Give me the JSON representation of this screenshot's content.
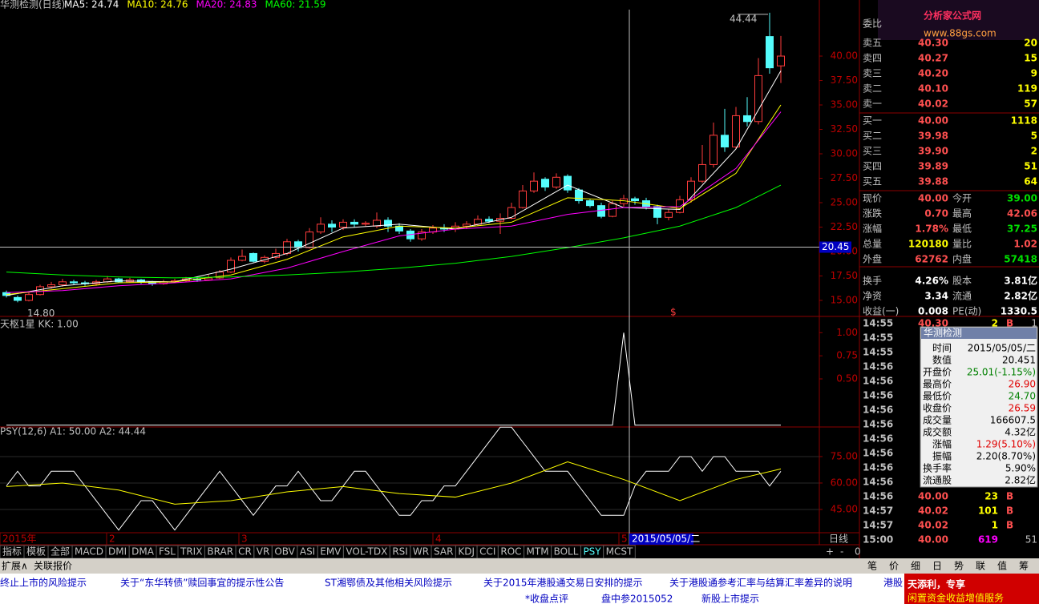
{
  "header": {
    "title": "华测检测(日线)",
    "ma_legend": [
      {
        "label": "MA5: 24.74",
        "color": "#ffffff"
      },
      {
        "label": "MA10: 24.76",
        "color": "#ffff00"
      },
      {
        "label": "MA20: 24.83",
        "color": "#ff00ff"
      },
      {
        "label": "MA60: 21.59",
        "color": "#00ff00"
      }
    ]
  },
  "price_chart": {
    "ylim": [
      13.36,
      45.74
    ],
    "yticks": [
      {
        "value": 15,
        "label": "15.00"
      },
      {
        "value": 17.5,
        "label": "17.50"
      },
      {
        "value": 20,
        "label": "20.00"
      },
      {
        "value": 22.5,
        "label": "22.50"
      },
      {
        "value": 25,
        "label": "25.00"
      },
      {
        "value": 27.5,
        "label": "27.50"
      },
      {
        "value": 30,
        "label": "30.00"
      },
      {
        "value": 32.5,
        "label": "32.50"
      },
      {
        "value": 35,
        "label": "35.00"
      },
      {
        "value": 37.5,
        "label": "37.50"
      },
      {
        "value": 40,
        "label": "40.00"
      }
    ],
    "candles": [
      [
        15.8,
        15.5,
        16.0,
        15.3
      ],
      [
        15.3,
        15.0,
        15.5,
        14.8
      ],
      [
        15.0,
        15.6,
        15.8,
        14.9
      ],
      [
        15.6,
        16.4,
        16.6,
        15.5
      ],
      [
        16.4,
        16.6,
        16.9,
        16.2
      ],
      [
        16.6,
        16.9,
        17.2,
        16.4
      ],
      [
        16.9,
        16.8,
        17.1,
        16.6
      ],
      [
        16.8,
        16.7,
        17.0,
        16.5
      ],
      [
        16.7,
        16.9,
        17.1,
        16.5
      ],
      [
        16.9,
        17.2,
        17.5,
        16.8
      ],
      [
        17.2,
        16.9,
        17.3,
        16.8
      ],
      [
        16.9,
        17.1,
        17.3,
        16.8
      ],
      [
        17.1,
        16.9,
        17.2,
        16.7
      ],
      [
        16.9,
        16.7,
        17.0,
        16.5
      ],
      [
        16.7,
        16.9,
        17.1,
        16.6
      ],
      [
        16.9,
        17.0,
        17.2,
        16.8
      ],
      [
        17.0,
        17.2,
        17.4,
        16.9
      ],
      [
        17.2,
        17.1,
        17.4,
        16.9
      ],
      [
        17.1,
        17.3,
        17.6,
        17.0
      ],
      [
        17.3,
        17.9,
        18.1,
        17.2
      ],
      [
        17.9,
        19.1,
        19.4,
        17.8
      ],
      [
        19.1,
        19.5,
        20.2,
        19.0
      ],
      [
        19.8,
        19.0,
        19.9,
        18.9
      ],
      [
        19.0,
        19.4,
        19.6,
        18.8
      ],
      [
        19.4,
        19.8,
        20.3,
        19.2
      ],
      [
        19.8,
        21.0,
        21.3,
        19.6
      ],
      [
        21.0,
        20.4,
        21.2,
        20.0
      ],
      [
        20.4,
        22.0,
        22.4,
        20.3
      ],
      [
        22.0,
        22.8,
        23.5,
        21.8
      ],
      [
        22.8,
        22.5,
        23.2,
        22.0
      ],
      [
        22.5,
        23.0,
        23.3,
        22.2
      ],
      [
        23.0,
        22.8,
        23.3,
        22.5
      ],
      [
        22.8,
        22.9,
        23.1,
        22.6
      ],
      [
        22.6,
        23.2,
        24.0,
        22.4
      ],
      [
        23.2,
        22.6,
        23.5,
        22.0
      ],
      [
        22.6,
        22.1,
        22.9,
        21.8
      ],
      [
        22.1,
        21.3,
        22.3,
        21.0
      ],
      [
        21.3,
        22.0,
        22.3,
        21.1
      ],
      [
        22.0,
        22.4,
        22.7,
        21.8
      ],
      [
        22.4,
        22.3,
        22.8,
        22.0
      ],
      [
        22.3,
        22.6,
        23.0,
        22.0
      ],
      [
        22.6,
        22.8,
        23.1,
        22.3
      ],
      [
        22.8,
        23.3,
        23.7,
        22.6
      ],
      [
        23.3,
        23.1,
        23.6,
        22.9
      ],
      [
        23.1,
        23.4,
        23.9,
        21.8
      ],
      [
        23.4,
        24.5,
        25.0,
        23.3
      ],
      [
        24.5,
        26.2,
        26.8,
        24.4
      ],
      [
        26.2,
        27.2,
        28.1,
        26.0
      ],
      [
        27.4,
        26.6,
        27.6,
        26.2
      ],
      [
        26.6,
        27.6,
        28.0,
        26.4
      ],
      [
        27.7,
        26.3,
        27.9,
        26.0
      ],
      [
        26.3,
        25.2,
        26.5,
        24.9
      ],
      [
        25.2,
        24.7,
        25.4,
        24.5
      ],
      [
        24.7,
        23.6,
        25.0,
        23.4
      ],
      [
        23.6,
        24.9,
        25.2,
        23.5
      ],
      [
        24.9,
        25.4,
        25.8,
        24.6
      ],
      [
        25.4,
        25.2,
        25.6,
        24.8
      ],
      [
        25.2,
        24.6,
        25.5,
        24.3
      ],
      [
        24.6,
        23.5,
        24.8,
        22.8
      ],
      [
        23.5,
        24.0,
        24.3,
        23.2
      ],
      [
        24.0,
        25.3,
        25.7,
        23.9
      ],
      [
        25.3,
        27.2,
        27.6,
        25.0
      ],
      [
        27.2,
        28.9,
        30.9,
        27.0
      ],
      [
        28.9,
        31.9,
        33.2,
        28.6
      ],
      [
        31.9,
        30.7,
        34.6,
        30.2
      ],
      [
        30.7,
        33.9,
        34.8,
        30.5
      ],
      [
        33.9,
        33.3,
        35.8,
        32.8
      ],
      [
        33.3,
        38.0,
        39.8,
        33.0
      ],
      [
        42.0,
        38.8,
        44.44,
        38.2
      ],
      [
        39.0,
        40.0,
        42.06,
        37.25
      ]
    ],
    "ma_x": [
      0,
      5,
      10,
      15,
      20,
      25,
      30,
      35,
      40,
      45,
      50,
      55,
      60,
      65,
      69
    ],
    "ma": [
      {
        "name": "MA5",
        "color": "#ffffff",
        "values": [
          15.5,
          16.5,
          17.0,
          16.9,
          18.2,
          19.8,
          22.4,
          22.8,
          22.3,
          23.5,
          26.8,
          24.5,
          24.3,
          30.5,
          38.5
        ]
      },
      {
        "name": "MA10",
        "color": "#ffff00",
        "values": [
          15.6,
          16.2,
          16.8,
          16.9,
          17.6,
          19.2,
          21.5,
          22.6,
          22.4,
          23.0,
          25.5,
          25.2,
          24.4,
          28.0,
          35.0
        ]
      },
      {
        "name": "MA20",
        "color": "#ff00ff",
        "values": [
          15.8,
          16.0,
          16.5,
          16.8,
          17.2,
          18.3,
          20.0,
          21.6,
          22.3,
          22.6,
          23.8,
          24.5,
          24.6,
          28.5,
          34.3
        ]
      },
      {
        "name": "MA60",
        "color": "#00ff00",
        "values": [
          17.9,
          17.6,
          17.4,
          17.3,
          17.4,
          17.6,
          17.9,
          18.3,
          18.8,
          19.5,
          20.4,
          21.4,
          22.6,
          24.5,
          26.8
        ]
      }
    ],
    "high_label": "44.44",
    "low_label": "14.80",
    "signal_label": "$",
    "crosshair_value": 20.45,
    "crosshair_label": "20.45"
  },
  "kk_chart": {
    "title": "天枢1星 KK: 1.00",
    "ylim": [
      -0.02,
      1.15
    ],
    "yticks": [
      {
        "value": 0.5,
        "label": "0.50"
      },
      {
        "value": 0.75,
        "label": "0.75"
      },
      {
        "value": 1,
        "label": "1.00"
      }
    ],
    "values": [
      0,
      0,
      0,
      0,
      0,
      0,
      0,
      0,
      0,
      0,
      0,
      0,
      0,
      0,
      0,
      0,
      0,
      0,
      0,
      0,
      0,
      0,
      0,
      0,
      0,
      0,
      0,
      0,
      0,
      0,
      0,
      0,
      0,
      0,
      0,
      0,
      0,
      0,
      0,
      0,
      0,
      0,
      0,
      0,
      0,
      0,
      0,
      0,
      0,
      0,
      0,
      0,
      0,
      0,
      0,
      1,
      0,
      0,
      0,
      0,
      0,
      0,
      0,
      0,
      0,
      0,
      0,
      0,
      0,
      0
    ]
  },
  "psy_chart": {
    "title": "PSY(12,6)  A1: 50.00  A2: 44.44",
    "ylim": [
      31.8,
      91.8
    ],
    "yticks": [
      {
        "value": 45,
        "label": "45.00"
      },
      {
        "value": 60,
        "label": "60.00"
      },
      {
        "value": 75,
        "label": "75.00"
      }
    ],
    "psy": [
      58.33,
      66.67,
      58.33,
      58.33,
      66.67,
      66.67,
      66.67,
      58.33,
      50,
      41.67,
      33.33,
      41.67,
      50,
      50,
      41.67,
      33.33,
      41.67,
      50,
      58.33,
      66.67,
      58.33,
      50,
      41.67,
      50,
      58.33,
      58.33,
      66.67,
      58.33,
      50,
      50,
      58.33,
      66.67,
      66.67,
      58.33,
      50,
      41.67,
      41.67,
      50,
      50,
      58.33,
      58.33,
      66.67,
      75,
      83.33,
      91.67,
      91.67,
      83.33,
      75,
      66.67,
      66.67,
      66.67,
      58.33,
      50,
      41.67,
      41.67,
      41.67,
      58.33,
      66.67,
      66.67,
      66.67,
      75,
      75,
      66.67,
      75,
      75,
      66.67,
      66.67,
      66.67,
      58.33,
      66.67
    ],
    "a2": [
      58,
      60,
      56,
      48,
      50,
      55,
      58,
      54,
      52,
      60,
      72,
      62,
      50,
      62,
      68
    ]
  },
  "x_axis": {
    "labels": [
      "2015年",
      "2",
      "3",
      "4",
      "5"
    ],
    "crosshair_date": "2015/05/05/二",
    "period": "日线"
  },
  "zoom": [
    "+",
    "-",
    "0"
  ],
  "tabs": [
    "指标",
    "模板",
    "全部",
    "MACD",
    "DMI",
    "DMA",
    "FSL",
    "TRIX",
    "BRAR",
    "CR",
    "VR",
    "OBV",
    "ASI",
    "EMV",
    "VOL-TDX",
    "RSI",
    "WR",
    "SAR",
    "KDJ",
    "CCI",
    "ROC",
    "MTM",
    "BOLL",
    "PSY",
    "MCST"
  ],
  "tabs2": [
    "扩展∧",
    "关联报价"
  ],
  "news": [
    "终止上市的风险提示",
    "关于“东华转债”赎回事宜的提示性公告",
    "ST湘鄂债及其他相关风险提示",
    "关于2015年港股通交易日安排的提示",
    "关于港股通参考汇率与结算汇率差异的说明",
    "港股"
  ],
  "news2": [
    "*收盘点评",
    "盘中参2015052",
    "新股上市提示"
  ],
  "logo": {
    "title": "分析家公式网",
    "url": "www.88gs.com"
  },
  "order_book": {
    "header": "委比",
    "sell": [
      {
        "label": "卖五",
        "price": "40.30",
        "volume": "20"
      },
      {
        "label": "卖四",
        "price": "40.27",
        "volume": "15"
      },
      {
        "label": "卖三",
        "price": "40.20",
        "volume": "9"
      },
      {
        "label": "卖二",
        "price": "40.10",
        "volume": "119"
      },
      {
        "label": "卖一",
        "price": "40.02",
        "volume": "57"
      }
    ],
    "buy": [
      {
        "label": "买一",
        "price": "40.00",
        "volume": "1118"
      },
      {
        "label": "买二",
        "price": "39.98",
        "volume": "5"
      },
      {
        "label": "买三",
        "price": "39.90",
        "volume": "2"
      },
      {
        "label": "买四",
        "price": "39.89",
        "volume": "51"
      },
      {
        "label": "买五",
        "price": "39.88",
        "volume": "64"
      }
    ]
  },
  "stats": [
    {
      "label": "现价",
      "value": "40.00",
      "color": "#ff5050",
      "label2": "今开",
      "value2": "39.00",
      "color2": "#00e000"
    },
    {
      "label": "涨跌",
      "value": "0.70",
      "color": "#ff5050",
      "label2": "最高",
      "value2": "42.06",
      "color2": "#ff5050"
    },
    {
      "label": "涨幅",
      "value": "1.78%",
      "color": "#ff5050",
      "label2": "最低",
      "value2": "37.25",
      "color2": "#00e000"
    },
    {
      "label": "总量",
      "value": "120180",
      "color": "#ffff00",
      "label2": "量比",
      "value2": "1.02",
      "color2": "#ff5050"
    },
    {
      "label": "外盘",
      "value": "62762",
      "color": "#ff5050",
      "label2": "内盘",
      "value2": "57418",
      "color2": "#00e000"
    },
    {
      "label": "换手",
      "value": "4.26%",
      "color": "#ffffff",
      "label2": "股本",
      "value2": "3.81亿",
      "color2": "#ffffff"
    },
    {
      "label": "净资",
      "value": "3.34",
      "color": "#ffffff",
      "label2": "流通",
      "value2": "2.82亿",
      "color2": "#ffffff"
    },
    {
      "label": "收益(一)",
      "value": "0.008",
      "color": "#ffffff",
      "label2": "PE(动)",
      "value2": "1330.5",
      "color2": "#ffffff"
    }
  ],
  "ticks": [
    {
      "time": "14:55",
      "price": "40.30",
      "volume": "2",
      "side": "B",
      "extra": "1"
    },
    {
      "time": "14:55"
    },
    {
      "time": "14:55"
    },
    {
      "time": "14:56"
    },
    {
      "time": "14:56"
    },
    {
      "time": "14:56"
    },
    {
      "time": "14:56"
    },
    {
      "time": "14:56"
    },
    {
      "time": "14:56"
    },
    {
      "time": "14:56"
    },
    {
      "time": "14:56"
    },
    {
      "time": "14:56"
    },
    {
      "time": "14:56",
      "price": "40.00",
      "volume": "23",
      "side": "B"
    },
    {
      "time": "14:57",
      "price": "40.02",
      "volume": "101",
      "side": "B"
    },
    {
      "time": "14:57",
      "price": "40.02",
      "volume": "1",
      "side": "B"
    },
    {
      "time": "15:00",
      "price": "40.00",
      "volume": "619",
      "extra": "51"
    }
  ],
  "tooltip": {
    "title": "华测检测",
    "rows": [
      {
        "key": "时间",
        "value": "2015/05/05/二",
        "color": "#000000"
      },
      {
        "key": "数值",
        "value": "20.451",
        "color": "#000000"
      },
      {
        "key": "开盘价",
        "value": "25.01(-1.15%)",
        "color": "#008000"
      },
      {
        "key": "最高价",
        "value": "26.90",
        "color": "#e00000"
      },
      {
        "key": "最低价",
        "value": "24.70",
        "color": "#008000"
      },
      {
        "key": "收盘价",
        "value": "26.59",
        "color": "#e00000"
      },
      {
        "key": "成交量",
        "value": "166607.5",
        "color": "#000000"
      },
      {
        "key": "成交额",
        "value": "4.32亿",
        "color": "#000000"
      },
      {
        "key": "涨幅",
        "value": "1.29(5.10%)",
        "color": "#e00000"
      },
      {
        "key": "振幅",
        "value": "2.20(8.70%)",
        "color": "#000000"
      },
      {
        "key": "换手率",
        "value": "5.90%",
        "color": "#000000"
      },
      {
        "key": "流通股",
        "value": "2.82亿",
        "color": "#000000"
      }
    ]
  },
  "bottom_tabs": [
    "笔",
    "价",
    "细",
    "日",
    "势",
    "联",
    "值",
    "筹"
  ],
  "ad": [
    "天添利，专享",
    "闲置资金收益增值服务"
  ]
}
